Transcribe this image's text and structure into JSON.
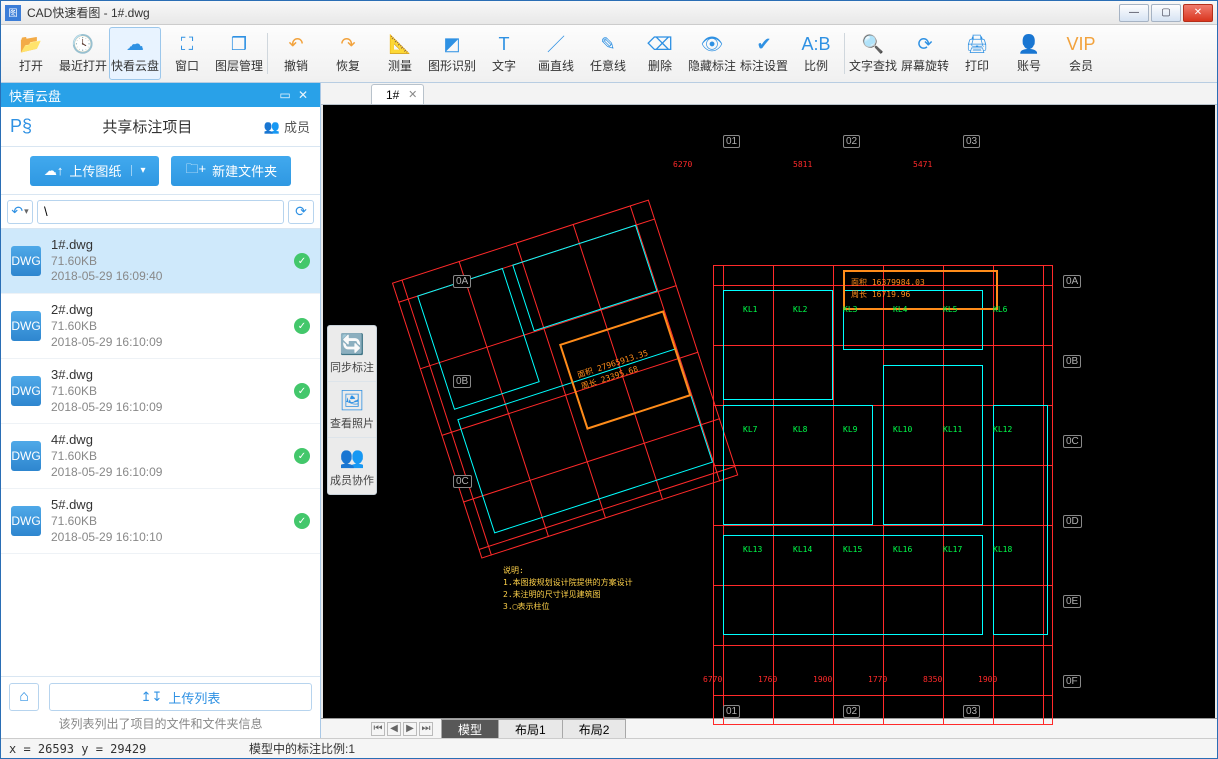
{
  "window": {
    "title": "CAD快速看图 - 1#.dwg"
  },
  "toolbar": [
    {
      "key": "open",
      "label": "打开",
      "glyph": "📂"
    },
    {
      "key": "recent",
      "label": "最近打开",
      "glyph": "🕓"
    },
    {
      "key": "cloud",
      "label": "快看云盘",
      "glyph": "☁",
      "active": true
    },
    {
      "key": "window",
      "label": "窗口",
      "glyph": "⛶"
    },
    {
      "key": "layer",
      "label": "图层管理",
      "glyph": "❒"
    },
    {
      "sep": true
    },
    {
      "key": "undo",
      "label": "撤销",
      "glyph": "↶",
      "cls": "undo"
    },
    {
      "key": "redo",
      "label": "恢复",
      "glyph": "↷",
      "cls": "restore"
    },
    {
      "key": "measure",
      "label": "测量",
      "glyph": "📐"
    },
    {
      "key": "shape",
      "label": "图形识别",
      "glyph": "◩"
    },
    {
      "key": "text",
      "label": "文字",
      "glyph": "T"
    },
    {
      "key": "line",
      "label": "画直线",
      "glyph": "／"
    },
    {
      "key": "freeline",
      "label": "任意线",
      "glyph": "✎"
    },
    {
      "key": "delete",
      "label": "删除",
      "glyph": "⌫"
    },
    {
      "key": "hide",
      "label": "隐藏标注",
      "glyph": "👁"
    },
    {
      "key": "markset",
      "label": "标注设置",
      "glyph": "✔"
    },
    {
      "key": "scale",
      "label": "比例",
      "glyph": "A:B"
    },
    {
      "sep": true
    },
    {
      "key": "findtext",
      "label": "文字查找",
      "glyph": "🔍"
    },
    {
      "key": "rotate",
      "label": "屏幕旋转",
      "glyph": "⟳"
    },
    {
      "key": "print",
      "label": "打印",
      "glyph": "🖨"
    },
    {
      "key": "account",
      "label": "账号",
      "glyph": "👤"
    },
    {
      "key": "vip",
      "label": "会员",
      "glyph": "VIP"
    }
  ],
  "sidebar": {
    "title": "快看云盘",
    "share_label": "共享标注项目",
    "members_label": "成员",
    "upload_btn": "上传图纸",
    "newfolder_btn": "新建文件夹",
    "path": "\\",
    "upload_list_btn": "上传列表",
    "hint": "该列表列出了项目的文件和文件夹信息",
    "files": [
      {
        "name": "1#.dwg",
        "size": "71.60KB",
        "time": "2018-05-29 16:09:40",
        "selected": true
      },
      {
        "name": "2#.dwg",
        "size": "71.60KB",
        "time": "2018-05-29 16:10:09"
      },
      {
        "name": "3#.dwg",
        "size": "71.60KB",
        "time": "2018-05-29 16:10:09"
      },
      {
        "name": "4#.dwg",
        "size": "71.60KB",
        "time": "2018-05-29 16:10:09"
      },
      {
        "name": "5#.dwg",
        "size": "71.60KB",
        "time": "2018-05-29 16:10:10"
      }
    ]
  },
  "doc_tab": {
    "label": "1#"
  },
  "canvas_tools": [
    {
      "key": "sync",
      "label": "同步标注",
      "glyph": "🔄"
    },
    {
      "key": "photo",
      "label": "查看照片",
      "glyph": "🖼"
    },
    {
      "key": "collab",
      "label": "成员协作",
      "glyph": "👥"
    }
  ],
  "layout_tabs": {
    "arrows": [
      "⏮",
      "◀",
      "▶",
      "⏭"
    ],
    "tabs": [
      "模型",
      "布局1",
      "布局2"
    ],
    "active": 0
  },
  "status": {
    "coords": "x = 26593 y = 29429",
    "scale": "模型中的标注比例:1"
  },
  "cad": {
    "colors": {
      "cyan": "#00ffff",
      "red": "#ff2a2a",
      "orange": "#ff8c1a",
      "green": "#00ff4a",
      "yellow": "#ffd24a",
      "bg": "#000000"
    },
    "axis_top": [
      "01",
      "02",
      "03"
    ],
    "axis_right": [
      "0A",
      "0B",
      "0C",
      "0D",
      "0E",
      "0F"
    ],
    "axis_left": [
      "0A",
      "0B",
      "0C"
    ],
    "axis_bottom": [
      "01",
      "02",
      "03"
    ],
    "dim_top": [
      "6270",
      "5811",
      "5471"
    ],
    "dim_bot": [
      "6770",
      "1760",
      "1900",
      "1770",
      "8350",
      "1900"
    ],
    "note_lines": [
      "说明:",
      "1.本图按规划设计院提供的方案设计",
      "2.未注明的尺寸详见建筑图",
      "3.▢表示柱位"
    ],
    "callout1": [
      "面积 27965913.35",
      "周长 23395.68"
    ],
    "callout2": [
      "面积 16379984.03",
      "周长 16719.96"
    ]
  }
}
